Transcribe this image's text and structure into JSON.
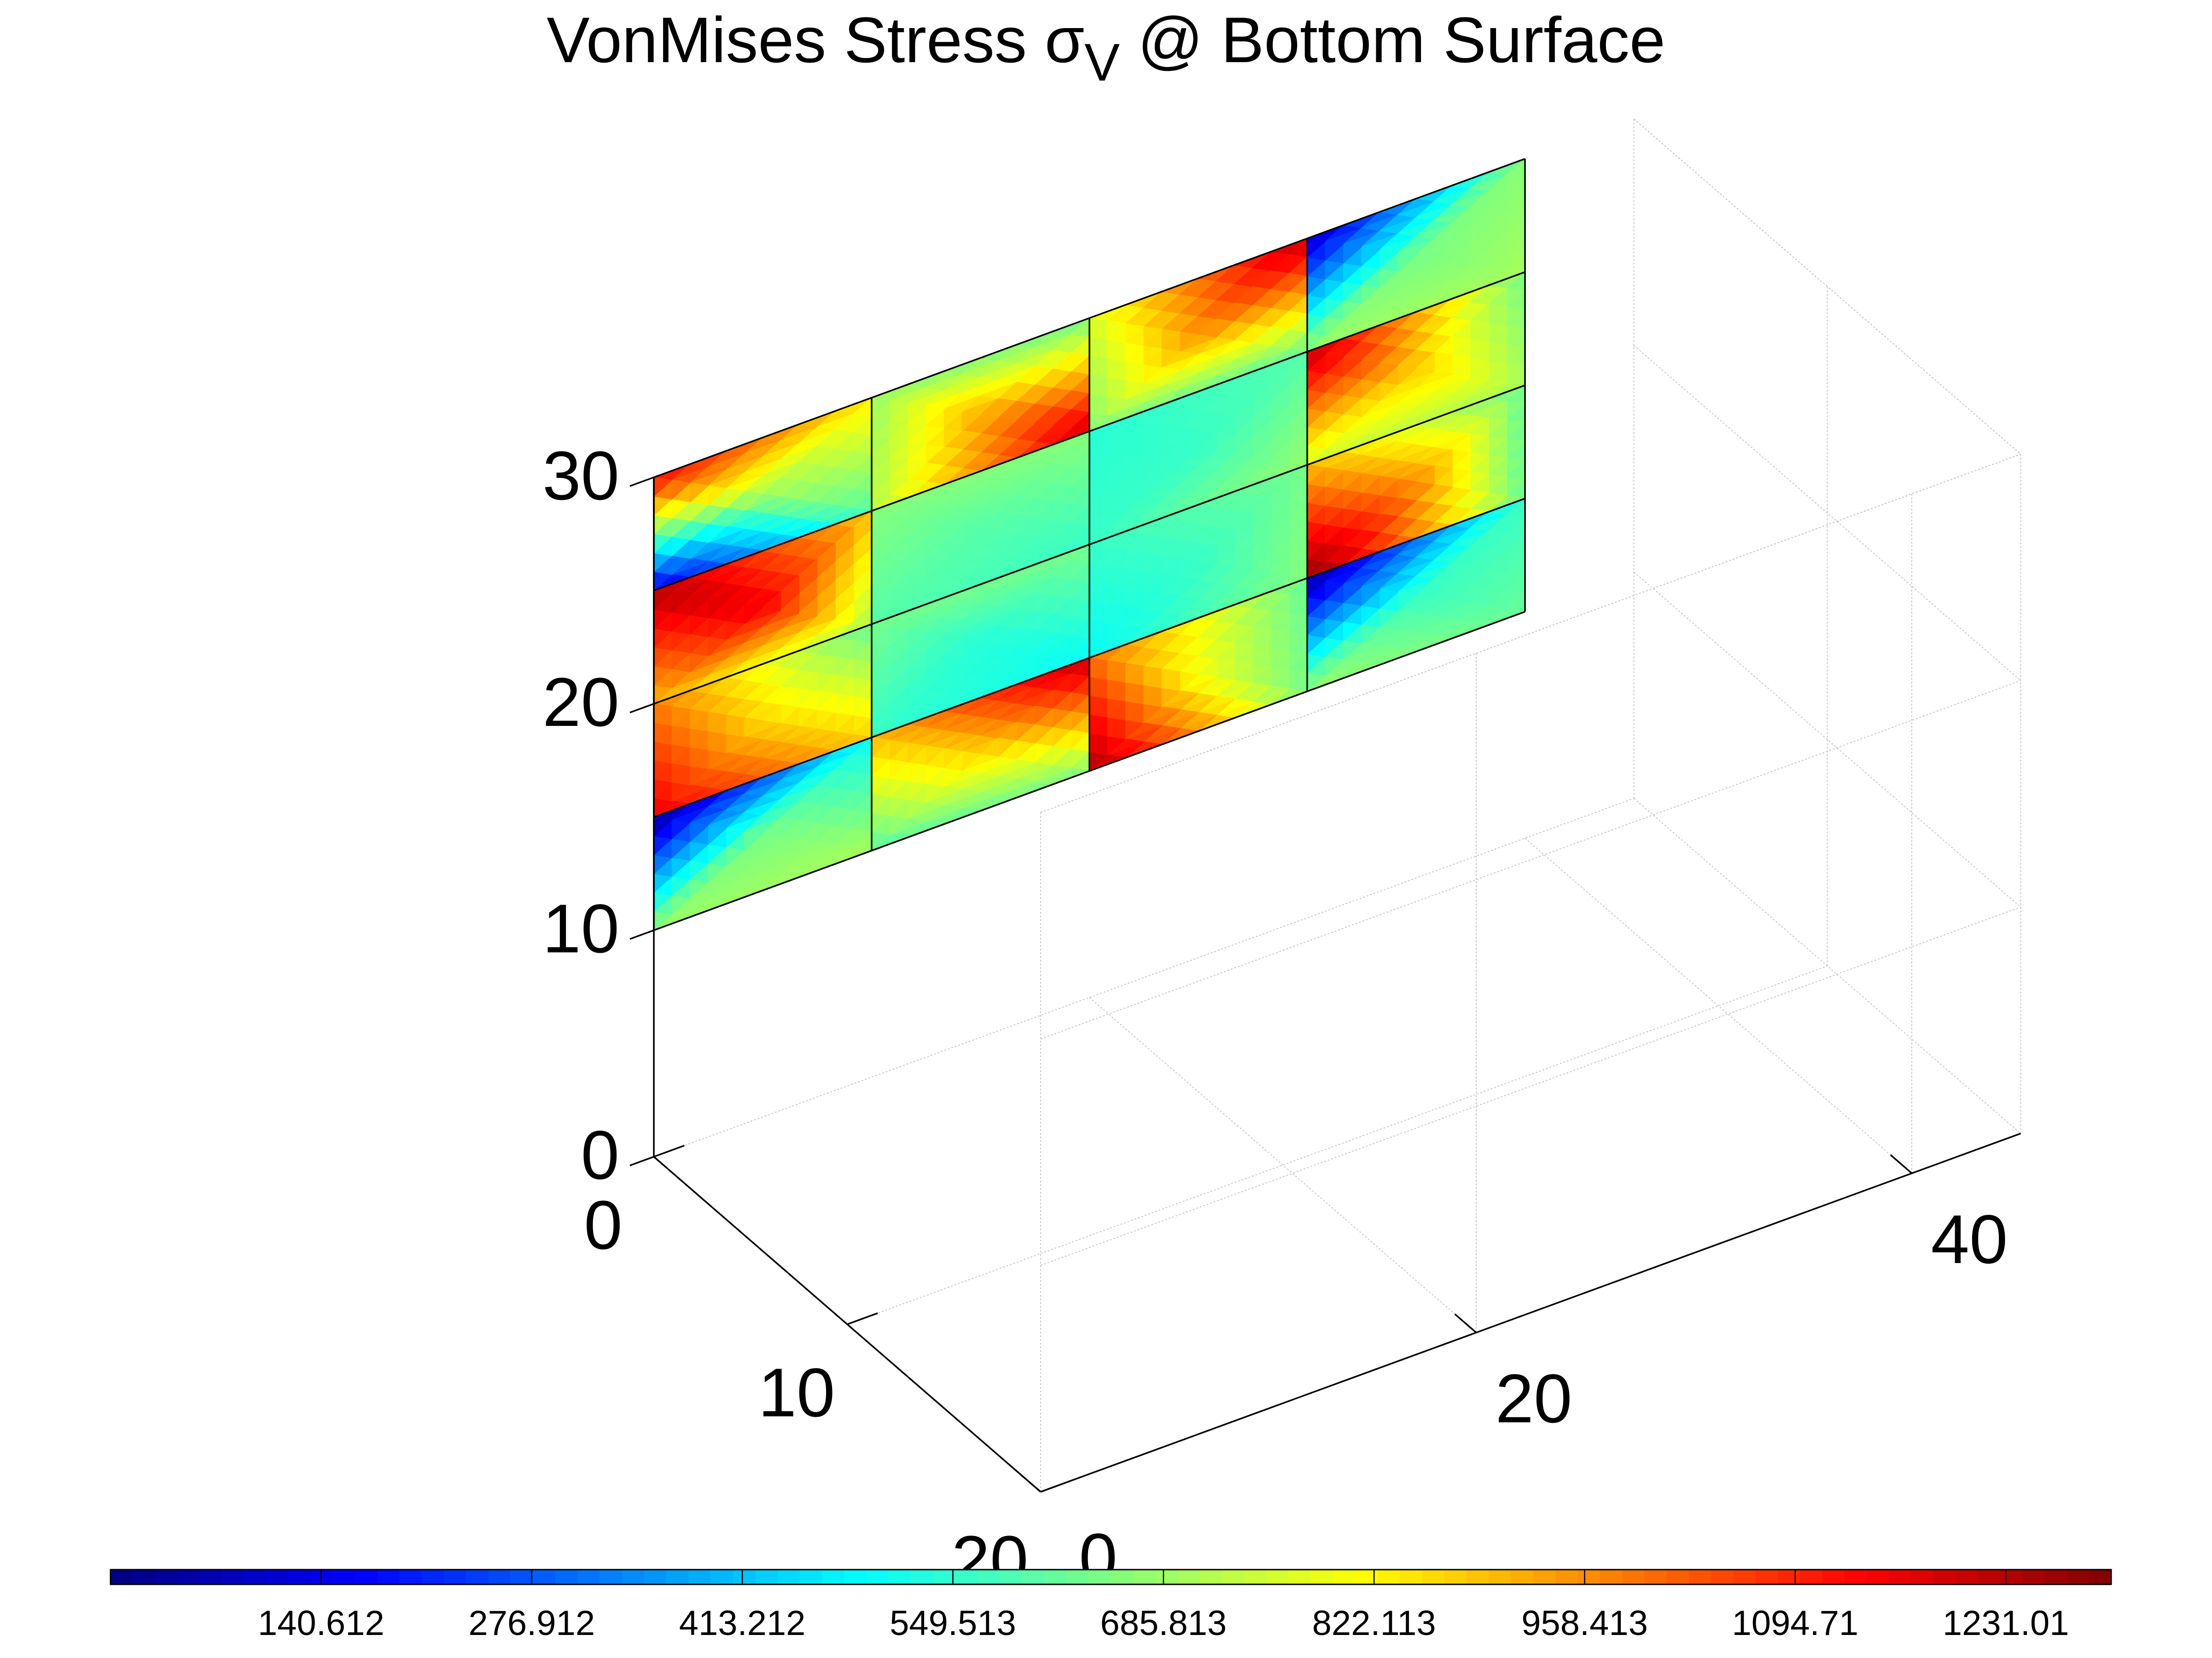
{
  "chart_data": {
    "type": "heatmap",
    "title": {
      "main": "VonMises Stress σ",
      "subscript": "V",
      "suffix": " @ Bottom Surface"
    },
    "colormap": "jet",
    "colorbar": {
      "placement": "bottom",
      "tick_labels": [
        "140.612",
        "276.912",
        "413.212",
        "549.513",
        "685.813",
        "822.113",
        "958.413",
        "1094.71",
        "1231.01"
      ],
      "range": [
        4.3,
        1299.2
      ]
    },
    "axes": {
      "x": {
        "ticks": [
          "0",
          "10",
          "20"
        ],
        "range": [
          0,
          20
        ]
      },
      "y": {
        "ticks": [
          "0",
          "20",
          "40"
        ],
        "range": [
          0,
          45
        ]
      },
      "z": {
        "ticks": [
          "0",
          "10",
          "20",
          "30"
        ],
        "range": [
          0,
          30
        ]
      },
      "grid": true
    },
    "surface": {
      "x_value": 0,
      "y_edges": [
        0,
        10,
        20,
        30,
        40
      ],
      "z_edges": [
        10,
        15,
        20,
        25,
        30
      ],
      "cells": [
        {
          "y_index": 0,
          "z_index": 3,
          "corners": [
            1140,
            840,
            600,
            130
          ],
          "center": 700
        },
        {
          "y_index": 0,
          "z_index": 2,
          "corners": [
            1230,
            880,
            700,
            900
          ],
          "center": 1150
        },
        {
          "y_index": 0,
          "z_index": 1,
          "corners": [
            980,
            620,
            870,
            1160
          ],
          "center": 860
        },
        {
          "y_index": 0,
          "z_index": 0,
          "corners": [
            30,
            500,
            700,
            680
          ],
          "center": 640
        },
        {
          "y_index": 1,
          "z_index": 3,
          "corners": [
            680,
            640,
            1200,
            720
          ],
          "center": 920
        },
        {
          "y_index": 1,
          "z_index": 2,
          "corners": [
            660,
            660,
            560,
            600
          ],
          "center": 600
        },
        {
          "y_index": 1,
          "z_index": 1,
          "corners": [
            640,
            640,
            500,
            560
          ],
          "center": 540
        },
        {
          "y_index": 1,
          "z_index": 0,
          "corners": [
            900,
            1220,
            660,
            600
          ],
          "center": 860
        },
        {
          "y_index": 2,
          "z_index": 3,
          "corners": [
            760,
            1220,
            620,
            660
          ],
          "center": 950
        },
        {
          "y_index": 2,
          "z_index": 2,
          "corners": [
            540,
            600,
            680,
            560
          ],
          "center": 560
        },
        {
          "y_index": 2,
          "z_index": 1,
          "corners": [
            560,
            640,
            660,
            500
          ],
          "center": 560
        },
        {
          "y_index": 2,
          "z_index": 0,
          "corners": [
            1000,
            620,
            640,
            1250
          ],
          "center": 800
        },
        {
          "y_index": 3,
          "z_index": 3,
          "corners": [
            80,
            660,
            700,
            680
          ],
          "center": 640
        },
        {
          "y_index": 3,
          "z_index": 2,
          "corners": [
            1220,
            640,
            700,
            760
          ],
          "center": 880
        },
        {
          "y_index": 3,
          "z_index": 1,
          "corners": [
            900,
            620,
            620,
            1280
          ],
          "center": 960
        },
        {
          "y_index": 3,
          "z_index": 0,
          "corners": [
            40,
            560,
            620,
            680
          ],
          "center": 560
        }
      ]
    }
  }
}
